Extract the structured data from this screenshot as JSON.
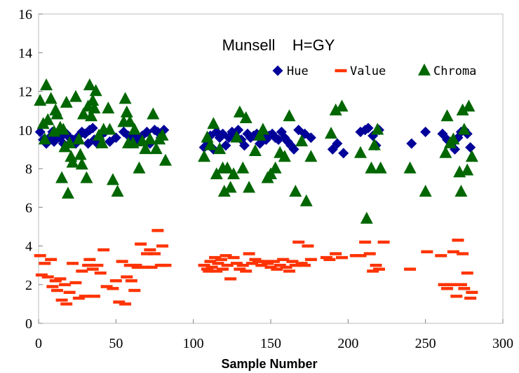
{
  "chart_data": {
    "type": "scatter",
    "title": "Munsell    H=GY",
    "xlabel": "Sample Number",
    "ylabel": "",
    "xlim": [
      0,
      300
    ],
    "ylim": [
      0,
      16
    ],
    "x_ticks": [
      "0",
      "50",
      "100",
      "150",
      "200",
      "250",
      "300"
    ],
    "y_ticks": [
      "0",
      "2",
      "4",
      "6",
      "8",
      "10",
      "12",
      "14",
      "16"
    ],
    "grid": false,
    "legend_position": "top-right",
    "series": [
      {
        "name": "Hue",
        "marker": "diamond",
        "color": "#000099",
        "points": [
          [
            1,
            9.9
          ],
          [
            3,
            9.5
          ],
          [
            5,
            9.3
          ],
          [
            7,
            9.6
          ],
          [
            9,
            9.9
          ],
          [
            10,
            9.4
          ],
          [
            12,
            9.7
          ],
          [
            14,
            9.6
          ],
          [
            16,
            9.3
          ],
          [
            18,
            9.8
          ],
          [
            20,
            9.6
          ],
          [
            22,
            9.5
          ],
          [
            24,
            9.3
          ],
          [
            26,
            9.7
          ],
          [
            28,
            9.9
          ],
          [
            30,
            9.8
          ],
          [
            32,
            9.3
          ],
          [
            33,
            10.0
          ],
          [
            35,
            10.1
          ],
          [
            36,
            9.5
          ],
          [
            38,
            9.3
          ],
          [
            40,
            9.7
          ],
          [
            43,
            9.9
          ],
          [
            46,
            9.4
          ],
          [
            50,
            9.6
          ],
          [
            55,
            9.9
          ],
          [
            58,
            9.7
          ],
          [
            60,
            9.4
          ],
          [
            62,
            9.8
          ],
          [
            64,
            9.5
          ],
          [
            67,
            9.7
          ],
          [
            70,
            9.9
          ],
          [
            72,
            9.3
          ],
          [
            75,
            10.0
          ],
          [
            77,
            9.9
          ],
          [
            79,
            9.6
          ],
          [
            81,
            10.0
          ],
          [
            107,
            9.1
          ],
          [
            109,
            9.4
          ],
          [
            111,
            9.7
          ],
          [
            113,
            9.0
          ],
          [
            115,
            9.9
          ],
          [
            117,
            9.6
          ],
          [
            119,
            9.8
          ],
          [
            121,
            9.2
          ],
          [
            123,
            9.6
          ],
          [
            125,
            9.9
          ],
          [
            127,
            9.7
          ],
          [
            129,
            10.0
          ],
          [
            131,
            9.5
          ],
          [
            133,
            9.2
          ],
          [
            135,
            9.8
          ],
          [
            137,
            9.6
          ],
          [
            139,
            9.7
          ],
          [
            141,
            9.8
          ],
          [
            143,
            9.3
          ],
          [
            145,
            9.9
          ],
          [
            147,
            9.5
          ],
          [
            149,
            9.7
          ],
          [
            151,
            9.8
          ],
          [
            153,
            9.6
          ],
          [
            155,
            9.5
          ],
          [
            157,
            9.9
          ],
          [
            159,
            9.6
          ],
          [
            161,
            9.4
          ],
          [
            163,
            9.2
          ],
          [
            165,
            9.0
          ],
          [
            168,
            10.0
          ],
          [
            172,
            9.8
          ],
          [
            176,
            9.6
          ],
          [
            190,
            9.0
          ],
          [
            193,
            9.3
          ],
          [
            197,
            8.8
          ],
          [
            208,
            9.9
          ],
          [
            211,
            10.0
          ],
          [
            213,
            10.1
          ],
          [
            216,
            9.7
          ],
          [
            218,
            9.2
          ],
          [
            220,
            10.0
          ],
          [
            241,
            9.3
          ],
          [
            250,
            9.9
          ],
          [
            261,
            9.8
          ],
          [
            264,
            9.5
          ],
          [
            267,
            9.3
          ],
          [
            269,
            9.0
          ],
          [
            271,
            9.6
          ],
          [
            273,
            9.9
          ],
          [
            275,
            10.0
          ],
          [
            277,
            9.8
          ],
          [
            279,
            9.1
          ]
        ]
      },
      {
        "name": "Value",
        "marker": "dash",
        "color": "#ff3300",
        "points": [
          [
            1,
            3.5
          ],
          [
            2,
            2.5
          ],
          [
            4,
            3.1
          ],
          [
            6,
            2.4
          ],
          [
            8,
            3.3
          ],
          [
            9,
            1.9
          ],
          [
            11,
            2.2
          ],
          [
            12,
            1.7
          ],
          [
            14,
            2.3
          ],
          [
            15,
            1.2
          ],
          [
            17,
            2.0
          ],
          [
            18,
            1.0
          ],
          [
            20,
            1.6
          ],
          [
            22,
            3.1
          ],
          [
            24,
            2.1
          ],
          [
            26,
            1.3
          ],
          [
            28,
            2.7
          ],
          [
            30,
            1.4
          ],
          [
            32,
            3.0
          ],
          [
            33,
            3.3
          ],
          [
            35,
            2.8
          ],
          [
            36,
            1.4
          ],
          [
            38,
            3.0
          ],
          [
            40,
            2.6
          ],
          [
            42,
            3.8
          ],
          [
            44,
            1.9
          ],
          [
            48,
            1.8
          ],
          [
            50,
            2.2
          ],
          [
            52,
            1.1
          ],
          [
            54,
            3.2
          ],
          [
            56,
            1.0
          ],
          [
            57,
            2.4
          ],
          [
            59,
            3.0
          ],
          [
            60,
            2.2
          ],
          [
            62,
            1.7
          ],
          [
            63,
            3.0
          ],
          [
            64,
            2.9
          ],
          [
            66,
            4.1
          ],
          [
            68,
            2.9
          ],
          [
            70,
            3.6
          ],
          [
            72,
            3.8
          ],
          [
            73,
            2.9
          ],
          [
            75,
            3.6
          ],
          [
            77,
            4.8
          ],
          [
            79,
            3.0
          ],
          [
            80,
            4.0
          ],
          [
            82,
            3.0
          ],
          [
            107,
            3.0
          ],
          [
            109,
            2.8
          ],
          [
            110,
            2.7
          ],
          [
            111,
            3.2
          ],
          [
            112,
            2.9
          ],
          [
            114,
            3.4
          ],
          [
            115,
            2.7
          ],
          [
            116,
            3.1
          ],
          [
            118,
            3.3
          ],
          [
            119,
            2.8
          ],
          [
            121,
            3.5
          ],
          [
            122,
            3.0
          ],
          [
            124,
            2.3
          ],
          [
            126,
            3.4
          ],
          [
            128,
            3.1
          ],
          [
            130,
            2.8
          ],
          [
            132,
            3.0
          ],
          [
            134,
            2.7
          ],
          [
            136,
            3.6
          ],
          [
            138,
            3.1
          ],
          [
            140,
            3.3
          ],
          [
            142,
            3.2
          ],
          [
            144,
            3.0
          ],
          [
            146,
            3.2
          ],
          [
            148,
            3.1
          ],
          [
            150,
            2.9
          ],
          [
            152,
            3.2
          ],
          [
            154,
            2.8
          ],
          [
            156,
            3.0
          ],
          [
            158,
            3.3
          ],
          [
            160,
            2.9
          ],
          [
            162,
            2.7
          ],
          [
            164,
            3.2
          ],
          [
            166,
            3.0
          ],
          [
            168,
            4.2
          ],
          [
            170,
            3.1
          ],
          [
            172,
            3.0
          ],
          [
            174,
            4.0
          ],
          [
            176,
            3.3
          ],
          [
            186,
            3.4
          ],
          [
            188,
            3.3
          ],
          [
            192,
            3.6
          ],
          [
            196,
            3.4
          ],
          [
            205,
            3.5
          ],
          [
            208,
            3.5
          ],
          [
            211,
            4.2
          ],
          [
            214,
            3.6
          ],
          [
            216,
            2.7
          ],
          [
            218,
            3.0
          ],
          [
            220,
            2.8
          ],
          [
            223,
            4.2
          ],
          [
            240,
            2.8
          ],
          [
            251,
            3.7
          ],
          [
            260,
            3.5
          ],
          [
            262,
            2.0
          ],
          [
            264,
            1.8
          ],
          [
            266,
            2.0
          ],
          [
            268,
            3.7
          ],
          [
            270,
            1.4
          ],
          [
            271,
            4.3
          ],
          [
            273,
            2.0
          ],
          [
            274,
            3.6
          ],
          [
            275,
            1.8
          ],
          [
            277,
            2.6
          ],
          [
            279,
            1.3
          ],
          [
            280,
            1.6
          ]
        ]
      },
      {
        "name": "Chroma",
        "marker": "triangle",
        "color": "#006600",
        "points": [
          [
            1,
            11.5
          ],
          [
            3,
            10.3
          ],
          [
            4,
            9.5
          ],
          [
            5,
            12.3
          ],
          [
            6,
            10.5
          ],
          [
            8,
            11.6
          ],
          [
            10,
            9.9
          ],
          [
            11,
            11.0
          ],
          [
            12,
            10.8
          ],
          [
            14,
            10.1
          ],
          [
            15,
            7.5
          ],
          [
            16,
            10.0
          ],
          [
            17,
            9.1
          ],
          [
            18,
            11.4
          ],
          [
            19,
            6.7
          ],
          [
            20,
            9.3
          ],
          [
            21,
            8.6
          ],
          [
            22,
            8.3
          ],
          [
            24,
            11.7
          ],
          [
            26,
            9.5
          ],
          [
            27,
            8.7
          ],
          [
            28,
            8.2
          ],
          [
            29,
            10.8
          ],
          [
            31,
            7.5
          ],
          [
            32,
            11.2
          ],
          [
            33,
            12.3
          ],
          [
            34,
            10.7
          ],
          [
            35,
            11.5
          ],
          [
            36,
            11.1
          ],
          [
            37,
            12.0
          ],
          [
            39,
            9.7
          ],
          [
            41,
            9.3
          ],
          [
            42,
            10.0
          ],
          [
            45,
            11.1
          ],
          [
            46,
            10.0
          ],
          [
            48,
            7.4
          ],
          [
            51,
            6.8
          ],
          [
            55,
            10.4
          ],
          [
            56,
            11.6
          ],
          [
            57,
            10.9
          ],
          [
            58,
            9.3
          ],
          [
            59,
            10.4
          ],
          [
            61,
            9.3
          ],
          [
            62,
            10.0
          ],
          [
            65,
            8.0
          ],
          [
            67,
            9.4
          ],
          [
            69,
            9.0
          ],
          [
            72,
            9.5
          ],
          [
            74,
            10.8
          ],
          [
            76,
            9.0
          ],
          [
            78,
            9.5
          ],
          [
            80,
            9.7
          ],
          [
            82,
            8.4
          ],
          [
            107,
            8.6
          ],
          [
            109,
            9.6
          ],
          [
            111,
            9.2
          ],
          [
            113,
            10.3
          ],
          [
            115,
            7.7
          ],
          [
            117,
            9.0
          ],
          [
            119,
            8.0
          ],
          [
            120,
            6.8
          ],
          [
            122,
            8.0
          ],
          [
            124,
            7.0
          ],
          [
            126,
            7.7
          ],
          [
            128,
            9.6
          ],
          [
            130,
            10.9
          ],
          [
            132,
            8.0
          ],
          [
            134,
            10.6
          ],
          [
            136,
            7.0
          ],
          [
            140,
            8.9
          ],
          [
            143,
            9.7
          ],
          [
            145,
            10.0
          ],
          [
            148,
            7.5
          ],
          [
            150,
            7.7
          ],
          [
            153,
            8.0
          ],
          [
            156,
            8.8
          ],
          [
            159,
            8.6
          ],
          [
            162,
            10.7
          ],
          [
            166,
            6.8
          ],
          [
            170,
            9.4
          ],
          [
            173,
            6.3
          ],
          [
            176,
            8.6
          ],
          [
            189,
            9.8
          ],
          [
            192,
            11.0
          ],
          [
            196,
            11.2
          ],
          [
            208,
            8.8
          ],
          [
            212,
            5.4
          ],
          [
            215,
            8.0
          ],
          [
            217,
            9.2
          ],
          [
            219,
            10.0
          ],
          [
            221,
            8.0
          ],
          [
            240,
            8.0
          ],
          [
            250,
            6.8
          ],
          [
            263,
            8.8
          ],
          [
            264,
            10.7
          ],
          [
            266,
            9.3
          ],
          [
            268,
            9.5
          ],
          [
            272,
            7.8
          ],
          [
            273,
            6.8
          ],
          [
            274,
            11.0
          ],
          [
            275,
            10.0
          ],
          [
            277,
            7.9
          ],
          [
            278,
            11.2
          ],
          [
            280,
            8.6
          ]
        ]
      }
    ]
  }
}
